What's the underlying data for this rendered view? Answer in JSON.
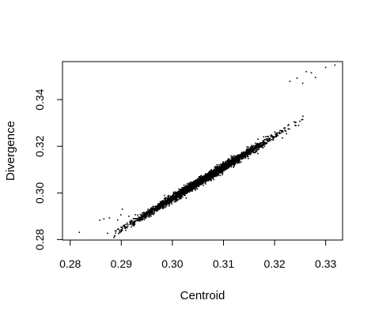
{
  "chart_data": {
    "type": "scatter",
    "title": "",
    "xlabel": "Centroid",
    "ylabel": "Divergence",
    "xlim": [
      0.2785,
      0.3333
    ],
    "ylim": [
      0.2798,
      0.3563
    ],
    "xticks": [
      0.28,
      0.29,
      0.3,
      0.31,
      0.32,
      0.33
    ],
    "xtick_labels": [
      "0.28",
      "0.29",
      "0.30",
      "0.31",
      "0.32",
      "0.33"
    ],
    "yticks": [
      0.28,
      0.3,
      0.32,
      0.34
    ],
    "ytick_labels": [
      "0.28",
      "0.30",
      "0.32",
      "0.34"
    ],
    "grid": false,
    "legend": "none",
    "point_color": "#000000",
    "cloud": {
      "n_points": 3000,
      "trend": {
        "slope": 1.33,
        "intercept": -0.1013
      },
      "x_mean": 0.306,
      "x_sd": 0.0065,
      "y_residual_sd": 0.0009,
      "x_range": [
        0.2875,
        0.3305
      ]
    },
    "points": [
      {
        "x": 0.2818,
        "y": 0.2831
      },
      {
        "x": 0.2873,
        "y": 0.2827
      },
      {
        "x": 0.2858,
        "y": 0.2883
      },
      {
        "x": 0.2866,
        "y": 0.2889
      },
      {
        "x": 0.2877,
        "y": 0.2893
      },
      {
        "x": 0.2893,
        "y": 0.2884
      },
      {
        "x": 0.2899,
        "y": 0.2906
      },
      {
        "x": 0.2902,
        "y": 0.293
      },
      {
        "x": 0.2915,
        "y": 0.29
      },
      {
        "x": 0.3262,
        "y": 0.352
      },
      {
        "x": 0.3244,
        "y": 0.3492
      },
      {
        "x": 0.323,
        "y": 0.3478
      },
      {
        "x": 0.3272,
        "y": 0.3515
      },
      {
        "x": 0.33,
        "y": 0.3538
      },
      {
        "x": 0.331,
        "y": 0.356
      },
      {
        "x": 0.3318,
        "y": 0.3548
      },
      {
        "x": 0.328,
        "y": 0.3495
      },
      {
        "x": 0.3255,
        "y": 0.347
      }
    ]
  }
}
